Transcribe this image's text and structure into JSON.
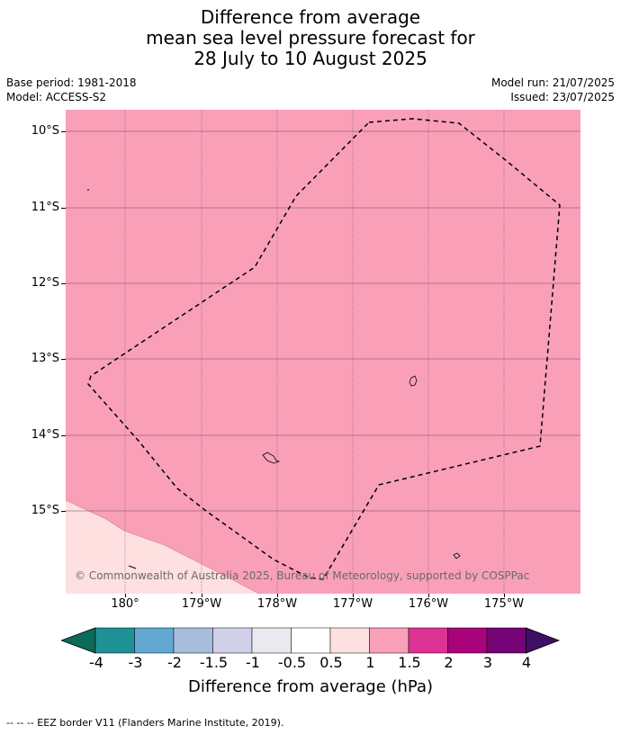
{
  "title": {
    "line1": "Difference from average",
    "line2": "mean sea level pressure forecast for",
    "line3": "28 July to 10 August 2025"
  },
  "meta": {
    "base_period": "Base period: 1981-2018",
    "model": "Model: ACCESS-S2",
    "model_run": "Model run: 21/07/2025",
    "issued": "Issued: 23/07/2025"
  },
  "map": {
    "lat_labels": [
      "10°S",
      "11°S",
      "12°S",
      "13°S",
      "14°S",
      "15°S"
    ],
    "lon_labels": [
      "180°",
      "179°W",
      "178°W",
      "177°W",
      "176°W",
      "175°W"
    ],
    "copyright": "© Commonwealth of Australia 2025, Bureau of Meteorology, supported by COSPPac",
    "colors": {
      "main_fill": "#f9a0b8",
      "corner_fill": "#fde0df",
      "grid": "#6b4a55",
      "eez": "#000000"
    }
  },
  "colorbar": {
    "title": "Difference from average (hPa)",
    "ticks": [
      "-4",
      "-3",
      "-2",
      "-1.5",
      "-1",
      "-0.5",
      "0.5",
      "1",
      "1.5",
      "2",
      "3",
      "4"
    ],
    "under_color": "#0b6b5a",
    "over_color": "#3e0f65",
    "colors": [
      "#1e9196",
      "#63a8d0",
      "#a8bcdc",
      "#d0d0e8",
      "#ebe8ef",
      "#ffffff",
      "#fde0df",
      "#f9a0b8",
      "#dc3395",
      "#a9037b",
      "#760377"
    ]
  },
  "footer": {
    "legend_line": "--  --  -- EEZ border V11 (Flanders Marine Institute, 2019)."
  }
}
